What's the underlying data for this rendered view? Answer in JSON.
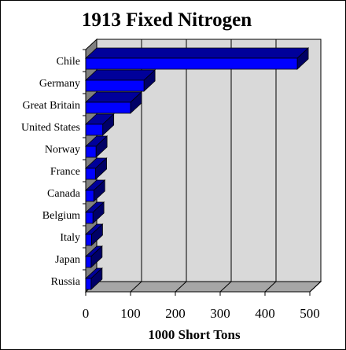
{
  "chart_data": {
    "type": "bar",
    "orientation": "horizontal",
    "style": "3d",
    "title": "1913 Fixed Nitrogen",
    "xlabel": "1000 Short Tons",
    "ylabel": "",
    "categories": [
      "Chile",
      "Germany",
      "Great Britain",
      "United States",
      "Norway",
      "France",
      "Canada",
      "Belgium",
      "Italy",
      "Japan",
      "Russia"
    ],
    "values": [
      472,
      130,
      100,
      38,
      23,
      22,
      18,
      16,
      13,
      12,
      12
    ],
    "xlim": [
      0,
      500
    ],
    "xticks": [
      "0",
      "100",
      "200",
      "300",
      "400",
      "500"
    ],
    "grid": "vertical",
    "legend": "none",
    "colors": {
      "bar_front": "#0000ff",
      "bar_top": "#00009a",
      "bar_side": "#000066",
      "back_wall": "#d9d9d9",
      "floor": "#a6a6a6",
      "left_wall": "#808080",
      "gridline": "#000000"
    }
  }
}
